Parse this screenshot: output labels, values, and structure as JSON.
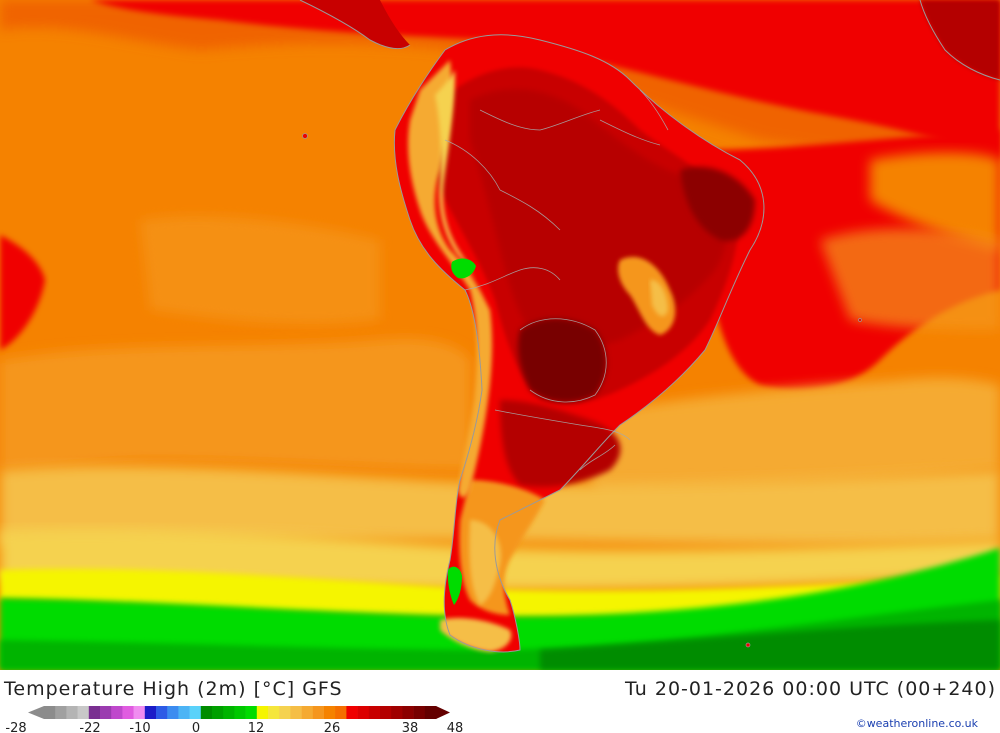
{
  "map": {
    "title": "Temperature High (2m) [°C] GFS",
    "timestamp": "Tu 20-01-2026 00:00 UTC (00+240)",
    "credit": "©weatheronline.co.uk"
  },
  "legend": {
    "ticks": [
      "-28",
      "-22",
      "-10",
      "0",
      "12",
      "26",
      "38",
      "48"
    ],
    "colors": [
      "#8c8c8c",
      "#a0a0a0",
      "#b4b4b4",
      "#c8c8c8",
      "#7a2f91",
      "#9b3bb0",
      "#bf48cc",
      "#e05ce0",
      "#f08cf0",
      "#1c1cc8",
      "#2d5be6",
      "#3c8cf0",
      "#4cb4f5",
      "#5ad2fa",
      "#008c00",
      "#00a000",
      "#00b400",
      "#00c800",
      "#00dc00",
      "#f5f500",
      "#f5e63c",
      "#f5d250",
      "#f5be46",
      "#f5aa32",
      "#f5961e",
      "#f58200",
      "#f56e00",
      "#f00000",
      "#dc0000",
      "#c80000",
      "#b40000",
      "#a00000",
      "#8c0000",
      "#780000",
      "#640000"
    ]
  }
}
